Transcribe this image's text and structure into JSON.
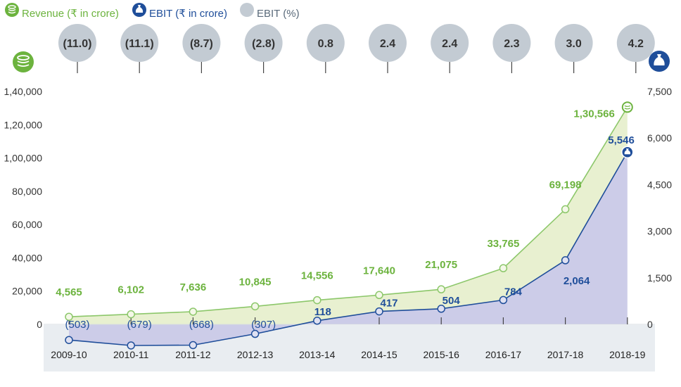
{
  "colors": {
    "revenue": "#6cb33e",
    "revenue_fill": "#e8f0d0",
    "ebit": "#1f4e9a",
    "ebit_fill": "#cccce8",
    "bubble": "#c3cbd3",
    "band": "#e9edf1"
  },
  "legend": {
    "revenue": "Revenue (₹ in crore)",
    "ebit": "EBIT (₹ in crore)",
    "ebit_pct": "EBIT (%)"
  },
  "chart_data": {
    "type": "line",
    "categories": [
      "2009-10",
      "2010-11",
      "2011-12",
      "2012-13",
      "2013-14",
      "2014-15",
      "2015-16",
      "2016-17",
      "2017-18",
      "2018-19"
    ],
    "series": [
      {
        "name": "Revenue (₹ in crore)",
        "axis": "left",
        "values": [
          4565,
          6102,
          7636,
          10845,
          14556,
          17640,
          21075,
          33765,
          69198,
          130566
        ],
        "labels": [
          "4,565",
          "6,102",
          "7,636",
          "10,845",
          "14,556",
          "17,640",
          "21,075",
          "33,765",
          "69,198",
          "1,30,566"
        ]
      },
      {
        "name": "EBIT (₹ in crore)",
        "axis": "right",
        "values": [
          -503,
          -679,
          -668,
          -307,
          118,
          417,
          504,
          784,
          2064,
          5546
        ],
        "labels": [
          "(503)",
          "(679)",
          "(668)",
          "(307)",
          "118",
          "417",
          "504",
          "784",
          "2,064",
          "5,546"
        ]
      },
      {
        "name": "EBIT (%)",
        "values": [
          -11.0,
          -11.1,
          -8.7,
          -2.8,
          0.8,
          2.4,
          2.4,
          2.3,
          3.0,
          4.2
        ],
        "labels": [
          "(11.0)",
          "(11.1)",
          "(8.7)",
          "(2.8)",
          "0.8",
          "2.4",
          "2.4",
          "2.3",
          "3.0",
          "4.2"
        ]
      }
    ],
    "left_axis": {
      "ylim": [
        0,
        140000
      ],
      "ticks": [
        0,
        20000,
        40000,
        60000,
        80000,
        100000,
        120000,
        140000
      ],
      "tick_labels": [
        "0",
        "20,000",
        "40,000",
        "60,000",
        "80,000",
        "1,00,000",
        "1,20,000",
        "1,40,000"
      ]
    },
    "right_axis": {
      "ylim": [
        0,
        7500
      ],
      "ticks": [
        0,
        1500,
        3000,
        4500,
        6000,
        7500
      ],
      "tick_labels": [
        "0",
        "1,500",
        "3,000",
        "4,500",
        "6,000",
        "7,500"
      ]
    }
  }
}
